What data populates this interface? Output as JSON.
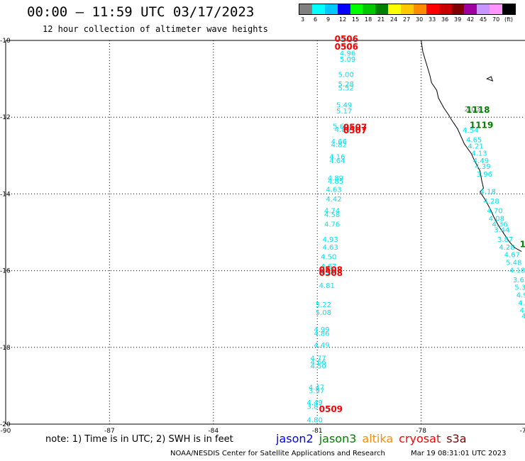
{
  "header": {
    "title": "00:00 – 11:59 UTC 03/17/2023",
    "subtitle": "12 hour collection of altimeter wave heights"
  },
  "legend": {
    "unit": "(ft)",
    "bins": [
      {
        "label": "3",
        "color": "#808080"
      },
      {
        "label": "6",
        "color": "#00ffff"
      },
      {
        "label": "9",
        "color": "#00c8ff"
      },
      {
        "label": "12",
        "color": "#0000ff"
      },
      {
        "label": "15",
        "color": "#00ff00"
      },
      {
        "label": "18",
        "color": "#00c800"
      },
      {
        "label": "21",
        "color": "#008000"
      },
      {
        "label": "24",
        "color": "#ffff00"
      },
      {
        "label": "27",
        "color": "#ffc800"
      },
      {
        "label": "30",
        "color": "#ff8c00"
      },
      {
        "label": "33",
        "color": "#ff0000"
      },
      {
        "label": "36",
        "color": "#c80000"
      },
      {
        "label": "39",
        "color": "#800000"
      },
      {
        "label": "42",
        "color": "#a000a0"
      },
      {
        "label": "45",
        "color": "#c896ff"
      },
      {
        "label": "70",
        "color": "#ff96ff"
      },
      {
        "label": "",
        "color": "#000000"
      }
    ]
  },
  "map": {
    "lon_range": [
      -90,
      -75
    ],
    "lat_range": [
      -20,
      -10
    ],
    "x_ticks": [
      "-90",
      "-87",
      "-84",
      "-81",
      "-78",
      "-75"
    ],
    "y_ticks": [
      "-10",
      "-12",
      "-14",
      "-16",
      "-18",
      "-20"
    ]
  },
  "observations": [
    {
      "lon": -80.3,
      "lat": -10.05,
      "swh": "4.19"
    },
    {
      "lon": -80.3,
      "lat": -10.2,
      "swh": "4.72"
    },
    {
      "lon": -80.35,
      "lat": -10.4,
      "swh": "4.96"
    },
    {
      "lon": -80.35,
      "lat": -10.55,
      "swh": "5.09"
    },
    {
      "lon": -80.4,
      "lat": -10.95,
      "swh": "5.00"
    },
    {
      "lon": -80.4,
      "lat": -11.2,
      "swh": "5.28"
    },
    {
      "lon": -80.4,
      "lat": -11.3,
      "swh": "5.52"
    },
    {
      "lon": -80.45,
      "lat": -11.75,
      "swh": "5.49"
    },
    {
      "lon": -80.45,
      "lat": -11.9,
      "swh": "5.17"
    },
    {
      "lon": -80.55,
      "lat": -12.3,
      "swh": "5.64"
    },
    {
      "lon": -80.5,
      "lat": -12.38,
      "swh": "4.86"
    },
    {
      "lon": -80.6,
      "lat": -12.7,
      "swh": "4.66"
    },
    {
      "lon": -80.6,
      "lat": -12.78,
      "swh": "4.82"
    },
    {
      "lon": -80.65,
      "lat": -13.1,
      "swh": "4.16"
    },
    {
      "lon": -80.65,
      "lat": -13.2,
      "swh": "4.64"
    },
    {
      "lon": -80.7,
      "lat": -13.65,
      "swh": "4.89"
    },
    {
      "lon": -80.7,
      "lat": -13.73,
      "swh": "4.85"
    },
    {
      "lon": -80.75,
      "lat": -13.95,
      "swh": "4.63"
    },
    {
      "lon": -80.75,
      "lat": -14.2,
      "swh": "4.42"
    },
    {
      "lon": -80.8,
      "lat": -14.5,
      "swh": "4.74"
    },
    {
      "lon": -80.8,
      "lat": -14.6,
      "swh": "4.58"
    },
    {
      "lon": -80.8,
      "lat": -14.85,
      "swh": "4.76"
    },
    {
      "lon": -80.85,
      "lat": -15.25,
      "swh": "4.93"
    },
    {
      "lon": -80.85,
      "lat": -15.45,
      "swh": "4.63"
    },
    {
      "lon": -80.9,
      "lat": -15.7,
      "swh": "4.50"
    },
    {
      "lon": -80.9,
      "lat": -15.95,
      "swh": "4.67"
    },
    {
      "lon": -80.95,
      "lat": -16.05,
      "swh": "4.51"
    },
    {
      "lon": -80.95,
      "lat": -16.1,
      "swh": "5.38"
    },
    {
      "lon": -80.95,
      "lat": -16.45,
      "swh": "4.81"
    },
    {
      "lon": -81.05,
      "lat": -16.95,
      "swh": "5.22"
    },
    {
      "lon": -81.05,
      "lat": -17.15,
      "swh": "5.08"
    },
    {
      "lon": -81.1,
      "lat": -17.6,
      "swh": "4.99"
    },
    {
      "lon": -81.1,
      "lat": -17.7,
      "swh": "4.86"
    },
    {
      "lon": -81.1,
      "lat": -18.0,
      "swh": "4.49"
    },
    {
      "lon": -81.2,
      "lat": -18.35,
      "swh": "4.77"
    },
    {
      "lon": -81.2,
      "lat": -18.45,
      "swh": "4.66"
    },
    {
      "lon": -81.2,
      "lat": -18.55,
      "swh": "4.50"
    },
    {
      "lon": -81.25,
      "lat": -19.1,
      "swh": "4.47"
    },
    {
      "lon": -81.25,
      "lat": -19.2,
      "swh": "3.97"
    },
    {
      "lon": -81.3,
      "lat": -19.5,
      "swh": "4.49"
    },
    {
      "lon": -81.3,
      "lat": -19.6,
      "swh": "3.81"
    },
    {
      "lon": -81.3,
      "lat": -19.95,
      "swh": "4.80"
    },
    {
      "lon": -76.75,
      "lat": -11.85,
      "swh": "2.03",
      "color": "#808080"
    },
    {
      "lon": -76.8,
      "lat": -12.4,
      "swh": "4.54"
    },
    {
      "lon": -76.7,
      "lat": -12.65,
      "swh": "4.65"
    },
    {
      "lon": -76.65,
      "lat": -12.82,
      "swh": "4.21"
    },
    {
      "lon": -76.55,
      "lat": -13.0,
      "swh": "4.13"
    },
    {
      "lon": -76.5,
      "lat": -13.2,
      "swh": "4.49"
    },
    {
      "lon": -76.45,
      "lat": -13.35,
      "swh": "4.39"
    },
    {
      "lon": -76.4,
      "lat": -13.55,
      "swh": "3.96"
    },
    {
      "lon": -76.3,
      "lat": -14.0,
      "swh": "4.18"
    },
    {
      "lon": -76.2,
      "lat": -14.25,
      "swh": "4.28"
    },
    {
      "lon": -76.1,
      "lat": -14.5,
      "swh": "4.70"
    },
    {
      "lon": -76.05,
      "lat": -14.7,
      "swh": "4.08"
    },
    {
      "lon": -75.95,
      "lat": -14.85,
      "swh": "4.36"
    },
    {
      "lon": -75.9,
      "lat": -15.0,
      "swh": "3.44"
    },
    {
      "lon": -75.8,
      "lat": -15.25,
      "swh": "3.87"
    },
    {
      "lon": -75.75,
      "lat": -15.45,
      "swh": "4.28"
    },
    {
      "lon": -75.6,
      "lat": -15.65,
      "swh": "4.67"
    },
    {
      "lon": -75.55,
      "lat": -15.85,
      "swh": "5.48"
    },
    {
      "lon": -75.45,
      "lat": -16.05,
      "swh": "4.18"
    },
    {
      "lon": -75.35,
      "lat": -16.3,
      "swh": "3.67"
    },
    {
      "lon": -75.3,
      "lat": -16.5,
      "swh": "5.33"
    },
    {
      "lon": -75.25,
      "lat": -16.7,
      "swh": "4.9"
    },
    {
      "lon": -75.2,
      "lat": -16.9,
      "swh": "4.0"
    },
    {
      "lon": -75.15,
      "lat": -17.1,
      "swh": "4."
    },
    {
      "lon": -75.1,
      "lat": -17.25,
      "swh": "4."
    }
  ],
  "time_labels": [
    {
      "lon": -80.5,
      "lat": -10.0,
      "text": "0506",
      "color": "#ff0000"
    },
    {
      "lon": -80.5,
      "lat": -10.2,
      "text": "0506",
      "color": "#ff0000"
    },
    {
      "lon": -80.25,
      "lat": -12.3,
      "text": "0507",
      "color": "#ff0000"
    },
    {
      "lon": -80.25,
      "lat": -12.38,
      "text": "0507",
      "color": "#ff0000"
    },
    {
      "lon": -80.95,
      "lat": -16.02,
      "text": "0508",
      "color": "#ff0000"
    },
    {
      "lon": -80.95,
      "lat": -16.1,
      "text": "0508",
      "color": "#ff0000"
    },
    {
      "lon": -80.95,
      "lat": -19.65,
      "text": "0509",
      "color": "#ff0000"
    },
    {
      "lon": -76.7,
      "lat": -11.85,
      "text": "1118",
      "color": "#008000"
    },
    {
      "lon": -76.6,
      "lat": -12.25,
      "text": "1119",
      "color": "#008000"
    },
    {
      "lon": -75.15,
      "lat": -15.35,
      "text": "11",
      "color": "#008000"
    }
  ],
  "footer": {
    "note": "note: 1) Time is in UTC; 2) SWH is in feet",
    "satellites": [
      {
        "name": "jason2",
        "color": "#0000ff"
      },
      {
        "name": "jason3",
        "color": "#008000"
      },
      {
        "name": "altika",
        "color": "#ff8c00"
      },
      {
        "name": "cryosat",
        "color": "#ff0000"
      },
      {
        "name": "s3a",
        "color": "#800000"
      }
    ],
    "credit": "NOAA/NESDIS Center for Satellite Applications and Research",
    "timestamp": "Mar 19 08:31:01 UTC 2023"
  },
  "colors": {
    "obs": "#00e5ee",
    "coast": "#000000",
    "grid": "#000000"
  }
}
